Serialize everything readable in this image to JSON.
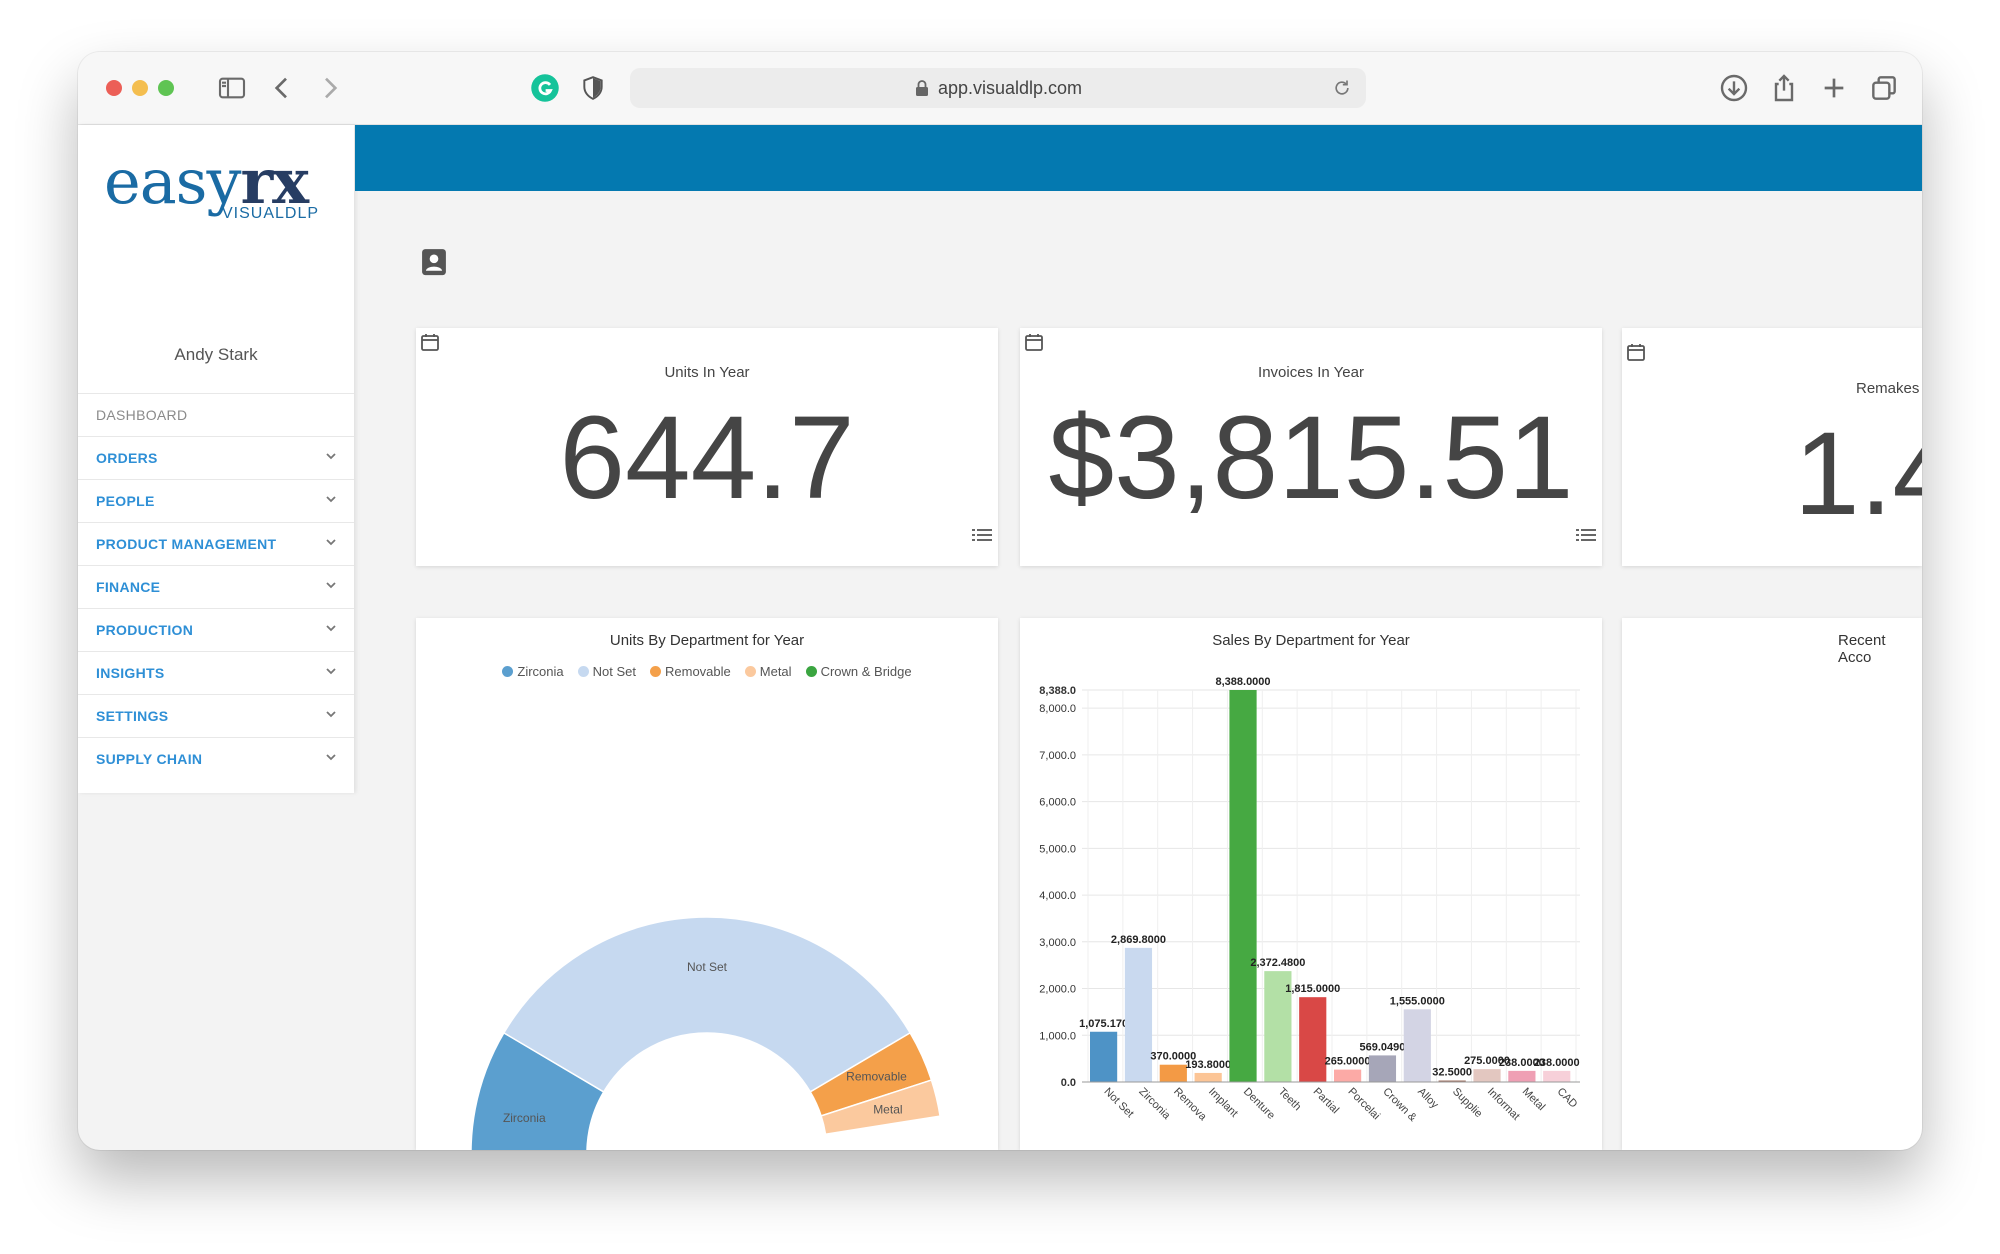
{
  "browser": {
    "url": "app.visualdlp.com"
  },
  "logo": {
    "main_a": "easy",
    "main_b": "rx",
    "sub": "VISUALDLP"
  },
  "user": {
    "name": "Andy Stark"
  },
  "menu": {
    "dashboard": "DASHBOARD",
    "items": [
      {
        "label": "ORDERS"
      },
      {
        "label": "PEOPLE"
      },
      {
        "label": "PRODUCT MANAGEMENT"
      },
      {
        "label": "FINANCE"
      },
      {
        "label": "PRODUCTION"
      },
      {
        "label": "INSIGHTS"
      },
      {
        "label": "SETTINGS"
      },
      {
        "label": "SUPPLY CHAIN"
      }
    ]
  },
  "stats": {
    "units": {
      "title": "Units In Year",
      "value": "644.7"
    },
    "invoices": {
      "title": "Invoices In Year",
      "value": "$3,815.51"
    },
    "remakes": {
      "title": "Remakes",
      "value": "1.4"
    }
  },
  "charts": {
    "units_title": "Units By Department for Year",
    "sales_title": "Sales By Department for Year",
    "recent_title": "Recent Acco"
  },
  "chart_data": [
    {
      "type": "pie",
      "title": "Units By Department for Year",
      "legend": [
        "Zirconia",
        "Not Set",
        "Removable",
        "Metal",
        "Crown & Bridge"
      ],
      "slices": [
        {
          "label": "Zirconia",
          "value": 22,
          "color": "#5b9fcf"
        },
        {
          "label": "Not Set",
          "value": 66,
          "color": "#c6d9f0"
        },
        {
          "label": "Removable",
          "value": 7,
          "color": "#f4a04a"
        },
        {
          "label": "Metal",
          "value": 5,
          "color": "#fbc99e"
        },
        {
          "label": "Crown & Bridge",
          "value": 0,
          "color": "#3aa540"
        }
      ],
      "visible_labels": [
        "Not Set",
        "Zirconia",
        "Removable",
        "Metal"
      ],
      "style": "half-donut (lower half cropped)"
    },
    {
      "type": "bar",
      "title": "Sales By Department for Year",
      "ylim": [
        0,
        8388.0
      ],
      "yticks": [
        "0.0",
        "1,000.0",
        "2,000.0",
        "3,000.0",
        "4,000.0",
        "5,000.0",
        "6,000.0",
        "7,000.0",
        "8,000.0",
        "8,388.0"
      ],
      "categories": [
        "Not Set",
        "Zirconia",
        "Remova",
        "Implant",
        "Denture",
        "Teeth",
        "Partial",
        "Porcelai",
        "Crown &",
        "Alloy",
        "Supplie",
        "Informat",
        "Metal",
        "CAD"
      ],
      "values": [
        1075.17,
        2869.8,
        370.0,
        193.8,
        8388.0,
        2372.48,
        1815.0,
        265.0,
        569.049,
        1555.0,
        32.5,
        275.0,
        238.0,
        238.0
      ],
      "labels": [
        "1,075.170",
        "2,869.8000",
        "370.0000",
        "193.8000",
        "8,388.0000",
        "2,372.4800",
        "1,815.0000",
        "265.0000",
        "569.0490",
        "1,555.0000",
        "32.5000",
        "275.0000",
        "238.0000",
        "238.0000"
      ],
      "colors": [
        "#4e93c6",
        "#c9d9ef",
        "#f39a45",
        "#fcc596",
        "#46a942",
        "#b3e0a6",
        "#d94846",
        "#fcaaa6",
        "#a6a6b8",
        "#d3d4e4",
        "#a27568",
        "#e3c7c0",
        "#ef9fb4",
        "#f7d0d9"
      ],
      "grid": true
    }
  ]
}
